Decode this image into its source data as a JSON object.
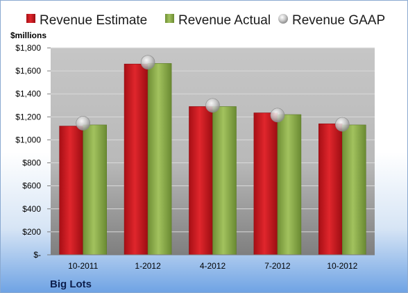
{
  "chart_data": {
    "type": "bar",
    "title": "",
    "company": "Big Lots",
    "ylabel": "$millions",
    "xlabel": "",
    "categories": [
      "10-2011",
      "1-2012",
      "4-2012",
      "7-2012",
      "10-2012"
    ],
    "ylim": [
      0,
      1800
    ],
    "yticks": [
      0,
      200,
      400,
      600,
      800,
      1000,
      1200,
      1400,
      1600,
      1800
    ],
    "ytick_labels": [
      "$-",
      "$200",
      "$400",
      "$600",
      "$800",
      "$1,000",
      "$1,200",
      "$1,400",
      "$1,600",
      "$1,800"
    ],
    "grid": true,
    "legend_position": "top",
    "series": [
      {
        "name": "Revenue Estimate",
        "kind": "bar",
        "color": "#c8161d",
        "values": [
          1120,
          1660,
          1290,
          1235,
          1140
        ]
      },
      {
        "name": "Revenue Actual",
        "kind": "bar",
        "color": "#8aab4a",
        "values": [
          1130,
          1665,
          1290,
          1220,
          1130
        ]
      },
      {
        "name": "Revenue GAAP",
        "kind": "marker",
        "color": "#b8b8b8",
        "values": [
          1145,
          1675,
          1300,
          1215,
          1135
        ]
      }
    ]
  }
}
